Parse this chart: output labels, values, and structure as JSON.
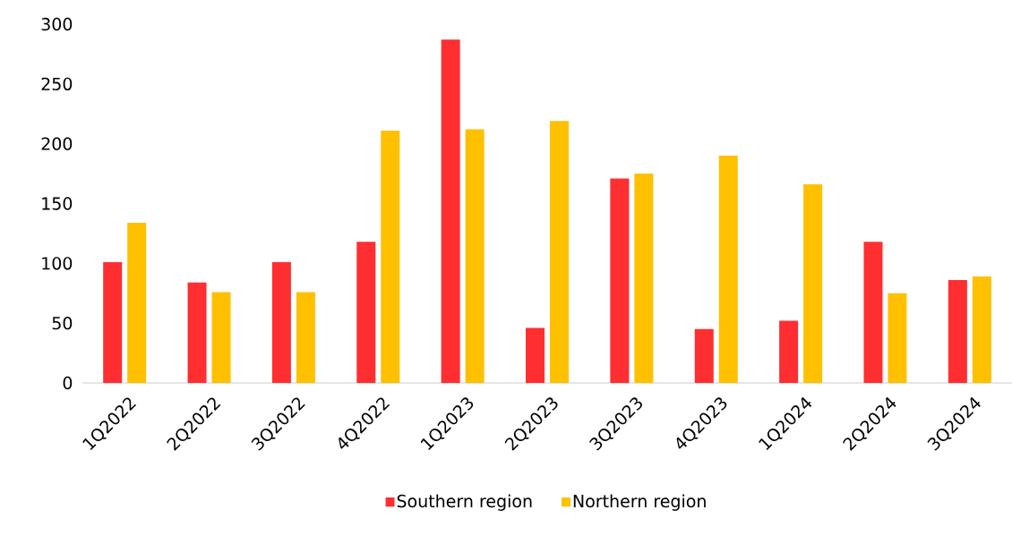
{
  "chart_data": {
    "type": "bar",
    "categories": [
      "1Q2022",
      "2Q2022",
      "3Q2022",
      "4Q2022",
      "1Q2023",
      "2Q2023",
      "3Q2023",
      "4Q2023",
      "1Q2024",
      "2Q2024",
      "3Q2024"
    ],
    "series": [
      {
        "name": "Southern region",
        "color": "#ff2e31",
        "values": [
          101,
          84,
          101,
          118,
          287,
          46,
          171,
          45,
          52,
          118,
          86
        ]
      },
      {
        "name": "Northern region",
        "color": "#ffc000",
        "values": [
          134,
          76,
          76,
          211,
          212,
          219,
          175,
          190,
          166,
          75,
          89
        ]
      }
    ],
    "ylim": [
      0,
      300
    ],
    "yticks": [
      0,
      50,
      100,
      150,
      200,
      250,
      300
    ],
    "grid": false,
    "legend": "bottom"
  }
}
